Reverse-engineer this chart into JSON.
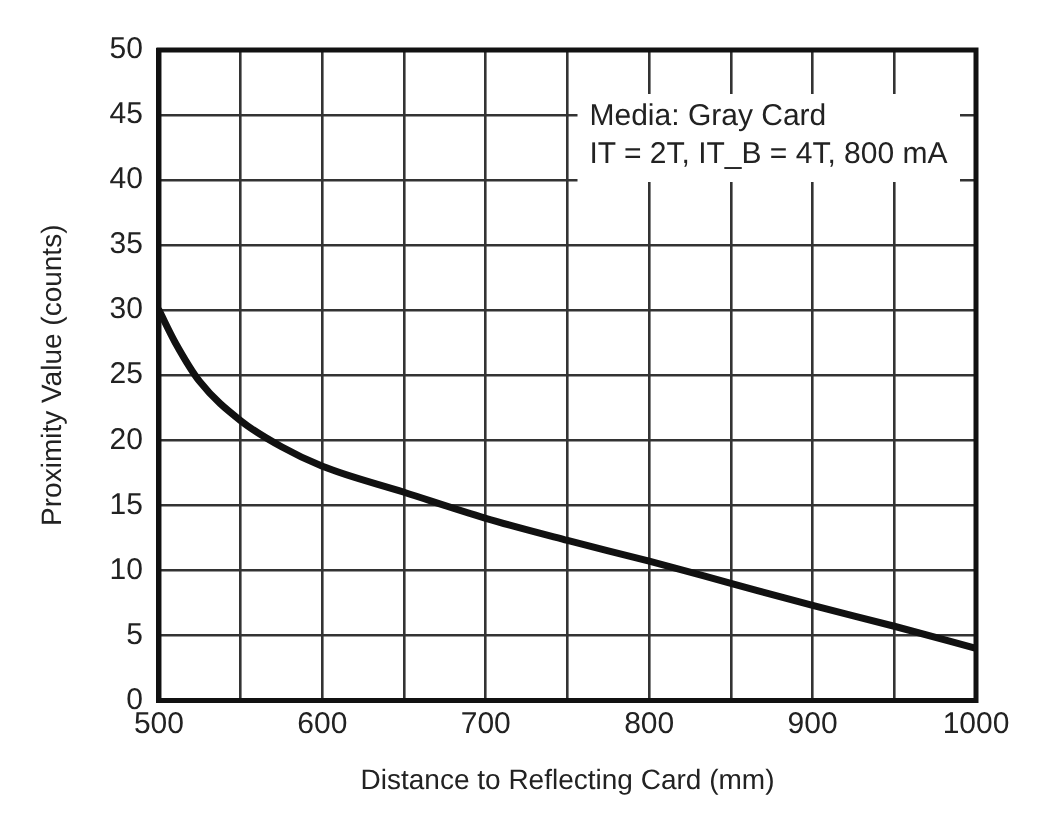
{
  "chart_data": {
    "type": "line",
    "xlabel": "Distance to Reflecting Card (mm)",
    "ylabel": "Proximity Value (counts)",
    "annotations": [
      "Media: Gray Card",
      "IT = 2T, IT_B = 4T, 800 mA"
    ],
    "series": [
      {
        "color": "#111111",
        "x": [
          500,
          510,
          525,
          550,
          575,
          600,
          650,
          700,
          750,
          800,
          850,
          900,
          950,
          1000
        ],
        "values": [
          30,
          27.5,
          24.5,
          21.5,
          19.5,
          18,
          16,
          14,
          12.3,
          10.7,
          9,
          7.3,
          5.7,
          4
        ]
      }
    ],
    "xlim": [
      500,
      1000
    ],
    "xticks": [
      500,
      {
        "value": 550,
        "label": null
      },
      600,
      {
        "value": 650,
        "label": null
      },
      700,
      {
        "value": 750,
        "label": null
      },
      800,
      {
        "value": 850,
        "label": null
      },
      900,
      {
        "value": 950,
        "label": null
      },
      1000
    ],
    "ylim": [
      0,
      50
    ],
    "yticks": [
      0,
      5,
      10,
      15,
      20,
      25,
      30,
      35,
      40,
      45,
      50
    ],
    "grid": true,
    "legend": false,
    "marker": "none",
    "line_style": "solid"
  }
}
